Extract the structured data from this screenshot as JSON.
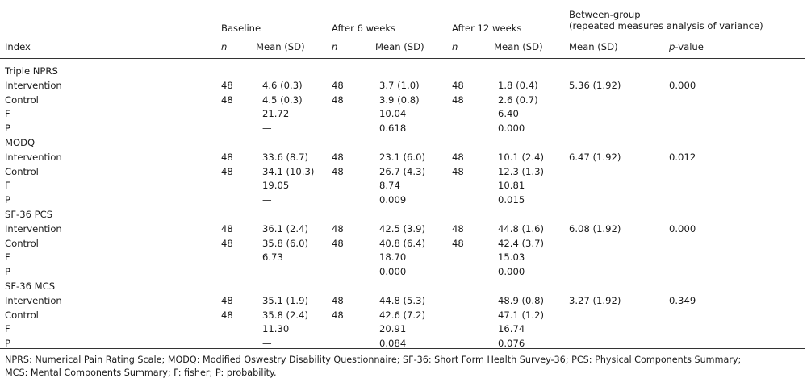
{
  "groups": {
    "baseline": "Baseline",
    "week6": "After 6 weeks",
    "week12": "After 12 weeks",
    "between_line1": "Between-group",
    "between_line2": "(repeated measures analysis of variance)"
  },
  "columns": {
    "index": "Index",
    "n": "n",
    "mean_sd": "Mean (SD)",
    "p_prefix": "p",
    "p_suffix": "-value"
  },
  "rows": [
    {
      "index": "Triple NPRS",
      "bn": "",
      "bm": "",
      "an": "",
      "am": "",
      "cn": "",
      "cm": "",
      "gm": "",
      "gp": ""
    },
    {
      "index": "Intervention",
      "bn": "48",
      "bm": "4.6 (0.3)",
      "an": "48",
      "am": "3.7 (1.0)",
      "cn": "48",
      "cm": "1.8 (0.4)",
      "gm": "5.36 (1.92)",
      "gp": "0.000"
    },
    {
      "index": "Control",
      "bn": "48",
      "bm": "4.5 (0.3)",
      "an": "48",
      "am": "3.9 (0.8)",
      "cn": "48",
      "cm": "2.6 (0.7)",
      "gm": "",
      "gp": ""
    },
    {
      "index": "F",
      "bn": "",
      "bm": "21.72",
      "an": "",
      "am": "10.04",
      "cn": "",
      "cm": "6.40",
      "gm": "",
      "gp": ""
    },
    {
      "index": "P",
      "bn": "",
      "bm": "—",
      "an": "",
      "am": "0.618",
      "cn": "",
      "cm": "0.000",
      "gm": "",
      "gp": ""
    },
    {
      "index": "MODQ",
      "bn": "",
      "bm": "",
      "an": "",
      "am": "",
      "cn": "",
      "cm": "",
      "gm": "",
      "gp": ""
    },
    {
      "index": "Intervention",
      "bn": "48",
      "bm": "33.6 (8.7)",
      "an": "48",
      "am": "23.1 (6.0)",
      "cn": "48",
      "cm": "10.1 (2.4)",
      "gm": "6.47 (1.92)",
      "gp": "0.012"
    },
    {
      "index": "Control",
      "bn": "48",
      "bm": "34.1 (10.3)",
      "an": "48",
      "am": "26.7 (4.3)",
      "cn": "48",
      "cm": "12.3 (1.3)",
      "gm": "",
      "gp": ""
    },
    {
      "index": "F",
      "bn": "",
      "bm": "19.05",
      "an": "",
      "am": "8.74",
      "cn": "",
      "cm": "10.81",
      "gm": "",
      "gp": ""
    },
    {
      "index": "P",
      "bn": "",
      "bm": "—",
      "an": "",
      "am": "0.009",
      "cn": "",
      "cm": "0.015",
      "gm": "",
      "gp": ""
    },
    {
      "index": "SF-36 PCS",
      "bn": "",
      "bm": "",
      "an": "",
      "am": "",
      "cn": "",
      "cm": "",
      "gm": "",
      "gp": ""
    },
    {
      "index": "Intervention",
      "bn": "48",
      "bm": "36.1 (2.4)",
      "an": "48",
      "am": "42.5 (3.9)",
      "cn": "48",
      "cm": "44.8 (1.6)",
      "gm": "6.08 (1.92)",
      "gp": "0.000"
    },
    {
      "index": "Control",
      "bn": "48",
      "bm": "35.8 (6.0)",
      "an": "48",
      "am": "40.8 (6.4)",
      "cn": "48",
      "cm": "42.4 (3.7)",
      "gm": "",
      "gp": ""
    },
    {
      "index": "F",
      "bn": "",
      "bm": "6.73",
      "an": "",
      "am": "18.70",
      "cn": "",
      "cm": "15.03",
      "gm": "",
      "gp": ""
    },
    {
      "index": "P",
      "bn": "",
      "bm": "—",
      "an": "",
      "am": "0.000",
      "cn": "",
      "cm": "0.000",
      "gm": "",
      "gp": ""
    },
    {
      "index": "SF-36 MCS",
      "bn": "",
      "bm": "",
      "an": "",
      "am": "",
      "cn": "",
      "cm": "",
      "gm": "",
      "gp": ""
    },
    {
      "index": "Intervention",
      "bn": "48",
      "bm": "35.1 (1.9)",
      "an": "48",
      "am": "44.8 (5.3)",
      "cn": "",
      "cm": "48.9 (0.8)",
      "gm": "3.27 (1.92)",
      "gp": "0.349"
    },
    {
      "index": "Control",
      "bn": "48",
      "bm": "35.8 (2.4)",
      "an": "48",
      "am": "42.6 (7.2)",
      "cn": "",
      "cm": "47.1 (1.2)",
      "gm": "",
      "gp": ""
    },
    {
      "index": "F",
      "bn": "",
      "bm": "11.30",
      "an": "",
      "am": "20.91",
      "cn": "",
      "cm": "16.74",
      "gm": "",
      "gp": ""
    },
    {
      "index": "P",
      "bn": "",
      "bm": "—",
      "an": "",
      "am": "0.084",
      "cn": "",
      "cm": "0.076",
      "gm": "",
      "gp": ""
    }
  ],
  "footnote": {
    "line1": "NPRS: Numerical Pain Rating Scale; MODQ: Modified Oswestry Disability Questionnaire; SF-36: Short Form Health Survey-36; PCS: Physical Components Summary;",
    "line2": "MCS: Mental Components Summary; F: fisher; P: probability."
  }
}
